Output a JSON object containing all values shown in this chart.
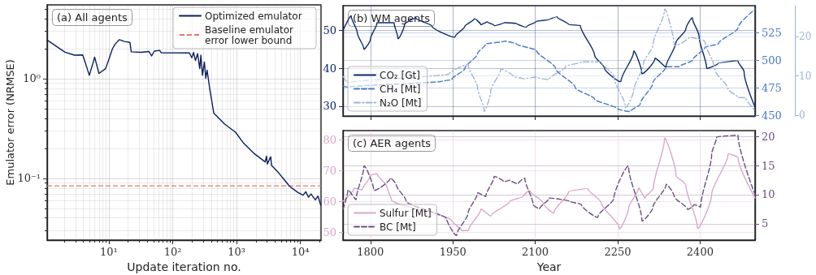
{
  "chart_data": [
    {
      "type": "line",
      "title": "(a) All agents",
      "xlabel": "Update iteration no.",
      "ylabel": "Emulator error (NRMSE)",
      "log": "xy",
      "xlim": [
        1.08,
        21000
      ],
      "ylim": [
        0.024,
        5.5
      ],
      "xticks": [
        {
          "value": 10,
          "label": "10¹"
        },
        {
          "value": 100,
          "label": "10²"
        },
        {
          "value": 1000,
          "label": "10³"
        },
        {
          "value": 10000,
          "label": "10⁴"
        }
      ],
      "yticks": [
        {
          "value": 0.1,
          "label": "10⁻¹"
        },
        {
          "value": 1,
          "label": "10⁰"
        }
      ],
      "grid": true,
      "legend": "top right",
      "marker": "none",
      "series": [
        {
          "name": "Optimized emulator",
          "color": "#0b1f5c",
          "line_style": "solid",
          "x": [
            1.09,
            2.06,
            2.9,
            3.9,
            4.95,
            6.0,
            7.0,
            8.9,
            11.4,
            12.5,
            14.5,
            17.6,
            21.4,
            22.4,
            31.6,
            42.4,
            46.7,
            51.5,
            62.6,
            65.8,
            183,
            199,
            212,
            227,
            245,
            265,
            276,
            292,
            313,
            329,
            345,
            380,
            440,
            651,
            962,
            1290,
            1905,
            2810,
            2950,
            3030,
            3420,
            3520,
            4580,
            5570,
            6770,
            9070,
            11000,
            12100,
            13400,
            14600,
            17100,
            18800,
            20800
          ],
          "values": [
            2.43,
            1.84,
            1.72,
            1.73,
            1.08,
            1.64,
            1.13,
            1.26,
            2.0,
            2.21,
            2.46,
            2.36,
            2.31,
            1.86,
            1.84,
            1.87,
            1.69,
            1.89,
            1.92,
            1.82,
            1.81,
            1.62,
            1.83,
            1.52,
            1.78,
            1.26,
            1.72,
            1.08,
            1.47,
            1.01,
            1.22,
            0.79,
            0.45,
            0.35,
            0.29,
            0.225,
            0.176,
            0.146,
            0.167,
            0.139,
            0.165,
            0.135,
            0.113,
            0.097,
            0.083,
            0.0724,
            0.0678,
            0.0734,
            0.0646,
            0.0697,
            0.0608,
            0.0664,
            0.0536
          ]
        }
      ],
      "ref_lines": [
        {
          "axis": "y",
          "value": 0.084,
          "label": "Baseline emulator error lower bound",
          "color": "#e8776a",
          "line_style": "dashed"
        }
      ]
    },
    {
      "type": "line",
      "title": "(b) WM agents",
      "xlim": [
        1750,
        2500
      ],
      "xticks": [
        1800,
        1950,
        2100,
        2250,
        2400
      ],
      "ylim": [
        27.4,
        56.5
      ],
      "yticks": [
        30,
        40,
        50
      ],
      "y2lim": [
        449.4,
        549.4
      ],
      "y2ticks": [
        450,
        475,
        500,
        525
      ],
      "y3lim": [
        -0.2,
        27.9
      ],
      "y3ticks": [
        0,
        10,
        20
      ],
      "tick_labels": "y",
      "grid": true,
      "legend": "bottom left",
      "marker": "none",
      "series": [
        {
          "name": "CO₂ [Gt]",
          "color": "#0d2a6b",
          "axis": "y",
          "line_style": "solid",
          "x": [
            1750,
            1765,
            1776,
            1788,
            1800,
            1812,
            1830,
            1843,
            1850,
            1862,
            1883,
            1912,
            1954,
            1972,
            1989,
            2001,
            2013,
            2025,
            2043,
            2066,
            2084,
            2102,
            2125,
            2140,
            2161,
            2182,
            2208,
            2226,
            2256,
            2279,
            2294,
            2318,
            2338,
            2356,
            2374,
            2386,
            2398,
            2412,
            2433,
            2469,
            2480,
            2500
          ],
          "values": [
            50.0,
            53.7,
            49.4,
            45.1,
            47.7,
            52.0,
            52.0,
            52.0,
            47.9,
            51.5,
            53.2,
            51.1,
            48.3,
            51.1,
            53.0,
            51.5,
            52.2,
            51.3,
            52.0,
            51.8,
            50.9,
            52.4,
            52.8,
            53.5,
            51.5,
            51.3,
            43.4,
            40.0,
            36.6,
            44.3,
            38.7,
            42.6,
            40.4,
            46.8,
            50.3,
            53.2,
            48.5,
            40.0,
            41.3,
            41.9,
            39.1,
            29.7
          ]
        },
        {
          "name": "CH₄ [Mt]",
          "color": "#4a78c8",
          "axis": "y2",
          "line_style": "dashed",
          "x": [
            1750,
            1759,
            1930,
            1948,
            1972,
            1995,
            2010,
            2043,
            2066,
            2102,
            2137,
            2173,
            2208,
            2250,
            2273,
            2291,
            2314,
            2338,
            2362,
            2386,
            2409,
            2433,
            2469,
            2500
          ],
          "values": [
            476.5,
            475.6,
            480.9,
            482.4,
            492.6,
            505.9,
            514.7,
            517.1,
            514.7,
            508.8,
            492.6,
            475.0,
            464.7,
            455.9,
            453.5,
            460.3,
            479.4,
            494.1,
            494.1,
            500.0,
            511.8,
            514.7,
            529.4,
            546.2
          ]
        },
        {
          "name": "N₂O [Mt]",
          "color": "#a0b4d8",
          "axis": "y3",
          "line_style": "dashdot",
          "x": [
            1750,
            1759,
            1943,
            1978,
            1995,
            2007,
            2019,
            2037,
            2060,
            2078,
            2102,
            2125,
            2155,
            2184,
            2220,
            2243,
            2264,
            2279,
            2297,
            2314,
            2335,
            2353,
            2380,
            2409,
            2427,
            2451,
            2469,
            2483,
            2500
          ],
          "values": [
            9.9,
            8.3,
            10.5,
            12.8,
            7.0,
            1.2,
            6.2,
            11.7,
            9.9,
            9.3,
            9.7,
            9.1,
            12.4,
            13.6,
            13.6,
            9.9,
            2.1,
            6.2,
            13.2,
            17.8,
            26.7,
            17.8,
            19.8,
            18.8,
            11.6,
            6.6,
            4.5,
            4.5,
            1.2
          ]
        }
      ]
    },
    {
      "type": "line",
      "title": "(c) AER agents",
      "xlabel": "Year",
      "xlim": [
        1750,
        2500
      ],
      "xticks": [
        1800,
        1950,
        2100,
        2250,
        2400
      ],
      "ylim": [
        47.4,
        82.9
      ],
      "yticks": [
        50,
        60,
        70,
        80
      ],
      "y2lim": [
        2.2,
        21
      ],
      "y2ticks": [
        5,
        10,
        15,
        20
      ],
      "grid": true,
      "legend": "bottom left",
      "marker": "none",
      "series": [
        {
          "name": "Sulfur [Mt]",
          "color": "#d8a8c8",
          "axis": "y",
          "line_style": "solid",
          "x": [
            1750,
            1770,
            1785,
            1800,
            1812,
            1830,
            1838,
            1948,
            1966,
            1978,
            2001,
            2019,
            2054,
            2078,
            2090,
            2114,
            2134,
            2161,
            2196,
            2220,
            2253,
            2270,
            2288,
            2300,
            2315,
            2335,
            2356,
            2374,
            2395,
            2421,
            2451,
            2469,
            2500
          ],
          "values": [
            60.0,
            64.2,
            63.7,
            68.4,
            68.9,
            64.7,
            60.5,
            53.7,
            50.5,
            50.5,
            57.4,
            55.3,
            60.0,
            61.6,
            63.4,
            59.5,
            56.3,
            63.2,
            64.0,
            59.5,
            51.3,
            57.9,
            64.2,
            61.1,
            64.2,
            80.0,
            68.4,
            65.3,
            51.6,
            62.1,
            75.3,
            74.2,
            61.1
          ]
        },
        {
          "name": "BC [Mt]",
          "color": "#6b4f80",
          "axis": "y2",
          "line_style": "dashed",
          "x": [
            1750,
            1759,
            1774,
            1788,
            1806,
            1836,
            1847,
            1865,
            1939,
            1957,
            1978,
            1995,
            2010,
            2025,
            2043,
            2054,
            2069,
            2081,
            2096,
            2108,
            2125,
            2161,
            2184,
            2214,
            2243,
            2270,
            2294,
            2314,
            2338,
            2353,
            2377,
            2389,
            2401,
            2421,
            2430,
            2469,
            2500
          ],
          "values": [
            7.5,
            10.8,
            9.2,
            14.8,
            10.8,
            12.8,
            11.7,
            8.9,
            5.8,
            3.1,
            6.9,
            10.3,
            9.7,
            13.1,
            12.2,
            12.5,
            11.9,
            12.8,
            8.3,
            7.6,
            9.4,
            8.9,
            8.3,
            6.2,
            9.4,
            14.7,
            5.6,
            7.8,
            11.7,
            9.7,
            7.5,
            8.3,
            7.9,
            16.9,
            19.9,
            20.2,
            10.0
          ]
        }
      ]
    }
  ]
}
